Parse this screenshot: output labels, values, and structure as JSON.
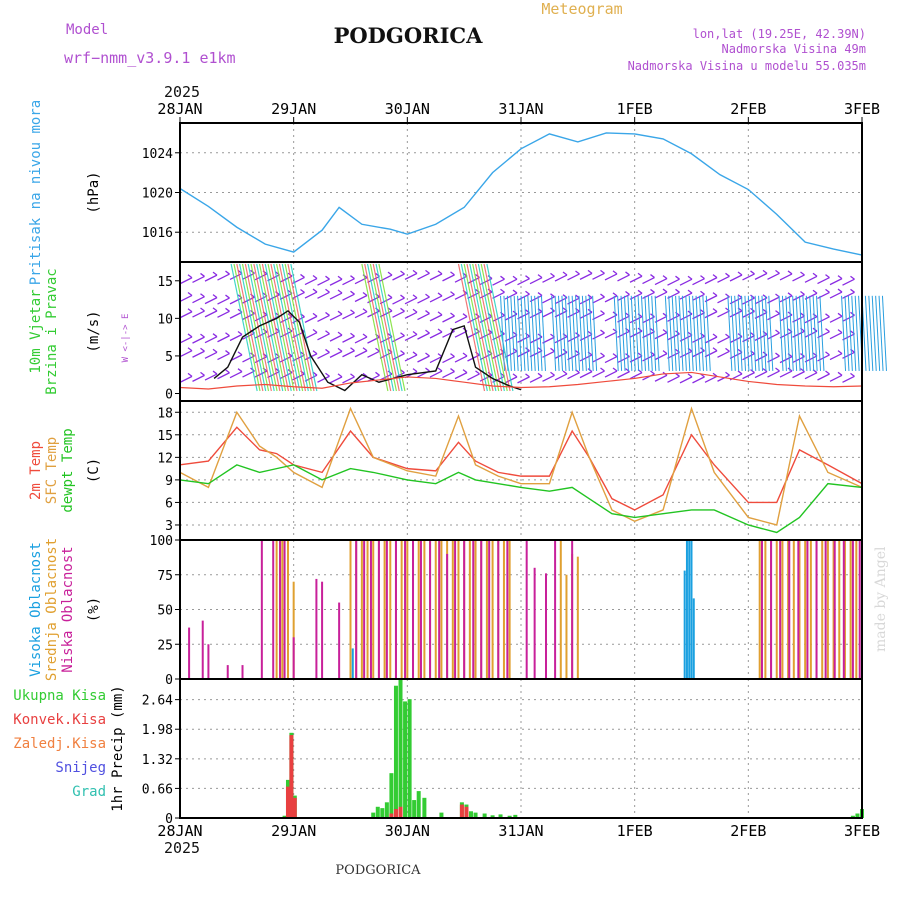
{
  "header": {
    "model_label": "Model",
    "model_name": "wrf−nmm_v3.9.1 e1km",
    "title": "PODGORICA",
    "subtitle": "Meteogram",
    "coords": "lon,lat (19.25E, 42.39N)",
    "altitude": "Nadmorska Visina 49m",
    "model_altitude": "Nadmorska Visina u modelu 55.035m",
    "year_top": "2025",
    "year_bottom": "2025",
    "footer_title": "PODGORICA",
    "watermark": "made by Angel"
  },
  "colors": {
    "pressure": "#3aa6e8",
    "temp2m": "#ef4b3c",
    "sfc": "#e0a040",
    "dewpt": "#22c422",
    "cloud_high": "#1aa0e0",
    "cloud_mid": "#e0a030",
    "cloud_low": "#c8209a",
    "precip_total": "#33cc33",
    "precip_conv": "#e84040",
    "precip_frz": "#f08040",
    "snow": "#5050e0",
    "hail": "#30c0b0",
    "wind_purple": "#8a2be2",
    "title_text": "#111111",
    "meta_text": "#b050d0"
  },
  "chart_data": {
    "type": "line",
    "x_ticks": [
      "28JAN",
      "29JAN",
      "30JAN",
      "31JAN",
      "1FEB",
      "2FEB",
      "3FEB"
    ],
    "panels": [
      {
        "id": "pressure",
        "type": "line",
        "label_lines": [
          "Pritisak na nivou mora"
        ],
        "unit": "(hPa)",
        "ylim": [
          1013,
          1027
        ],
        "yticks": [
          1016,
          1020,
          1024
        ],
        "grid": true,
        "series": [
          {
            "x": [
              0,
              0.25,
              0.5,
              0.75,
              1.0,
              1.25,
              1.4,
              1.6,
              1.85,
              2.0,
              2.25,
              2.5,
              2.75,
              3.0,
              3.25,
              3.5,
              3.75,
              4.0,
              4.25,
              4.5,
              4.75,
              5.0,
              5.25,
              5.5,
              5.75,
              6.0
            ],
            "y": [
              1020.4,
              1018.6,
              1016.5,
              1014.8,
              1014.0,
              1016.2,
              1018.5,
              1016.8,
              1016.3,
              1015.8,
              1016.8,
              1018.5,
              1022.0,
              1024.4,
              1025.9,
              1025.1,
              1026.0,
              1025.9,
              1025.4,
              1023.9,
              1021.8,
              1020.3,
              1017.8,
              1015.0,
              1014.3,
              1013.7
            ]
          }
        ]
      },
      {
        "id": "wind",
        "type": "line",
        "label_lines": [
          "10m Vjetar",
          "Brzina i Pravac"
        ],
        "unit": "(m/s)",
        "ylim": [
          -1,
          17.5
        ],
        "yticks": [
          0,
          5,
          10,
          15
        ],
        "grid": false,
        "direction_legend": "W <-|-> E",
        "series": [
          {
            "name": "wind speed",
            "x": [
              0.3,
              0.42,
              0.55,
              0.7,
              0.85,
              0.95,
              1.05,
              1.15,
              1.3,
              1.45,
              1.6,
              1.75,
              2.0,
              2.25,
              2.4,
              2.5,
              2.6,
              2.75,
              2.9,
              3.0
            ],
            "y": [
              2.0,
              3.5,
              7.5,
              9.0,
              10.0,
              11.0,
              9.5,
              5.0,
              1.5,
              0.4,
              2.5,
              1.5,
              2.5,
              3.0,
              8.5,
              9.0,
              3.5,
              2.0,
              1.0,
              0.5
            ]
          },
          {
            "name": "wind gust",
            "x": [
              0,
              0.25,
              0.5,
              0.75,
              1.0,
              1.25,
              1.5,
              1.75,
              2.0,
              2.25,
              2.5,
              2.75,
              3.0,
              3.25,
              3.5,
              3.75,
              4.0,
              4.25,
              4.5,
              4.75,
              5.0,
              5.25,
              5.5,
              5.75,
              6.0
            ],
            "y": [
              0.8,
              0.6,
              1.0,
              1.2,
              0.9,
              0.7,
              1.4,
              1.8,
              2.2,
              2.0,
              1.5,
              1.0,
              0.8,
              0.9,
              1.2,
              1.6,
              2.0,
              2.6,
              2.8,
              2.2,
              1.6,
              1.2,
              1.0,
              0.9,
              1.0
            ]
          }
        ]
      },
      {
        "id": "temperature",
        "type": "line",
        "label_lines": [
          "2m Temp",
          "SFC Temp",
          "dewpt Temp"
        ],
        "unit": "(C)",
        "ylim": [
          1,
          19.5
        ],
        "yticks": [
          3,
          6,
          9,
          12,
          15,
          18
        ],
        "grid": true,
        "series": [
          {
            "name": "2m Temp",
            "x": [
              0,
              0.25,
              0.5,
              0.7,
              0.85,
              1.0,
              1.25,
              1.5,
              1.7,
              2.0,
              2.25,
              2.45,
              2.6,
              2.8,
              3.0,
              3.25,
              3.45,
              3.6,
              3.8,
              4.0,
              4.25,
              4.5,
              4.7,
              5.0,
              5.25,
              5.45,
              5.7,
              6.0
            ],
            "y": [
              11.0,
              11.5,
              16.0,
              13.0,
              12.5,
              11.0,
              10.0,
              15.5,
              12.0,
              10.5,
              10.2,
              14.0,
              11.5,
              10.0,
              9.5,
              9.5,
              15.5,
              12.0,
              6.5,
              5.0,
              7.0,
              15.0,
              11.0,
              6.0,
              6.0,
              13.0,
              11.0,
              8.5
            ]
          },
          {
            "name": "SFC Temp",
            "x": [
              0,
              0.25,
              0.5,
              0.7,
              0.85,
              1.0,
              1.25,
              1.5,
              1.7,
              2.0,
              2.25,
              2.45,
              2.6,
              2.8,
              3.0,
              3.25,
              3.45,
              3.6,
              3.8,
              4.0,
              4.25,
              4.5,
              4.7,
              5.0,
              5.25,
              5.45,
              5.7,
              6.0
            ],
            "y": [
              10.0,
              8.0,
              18.0,
              13.5,
              12.0,
              10.0,
              8.0,
              18.5,
              12.0,
              10.2,
              9.5,
              17.5,
              11.0,
              9.5,
              8.5,
              8.5,
              18.0,
              12.0,
              5.0,
              3.5,
              5.0,
              18.5,
              10.0,
              4.0,
              3.0,
              17.5,
              10.0,
              8.0
            ]
          },
          {
            "name": "dewpt Temp",
            "x": [
              0,
              0.25,
              0.5,
              0.7,
              0.85,
              1.0,
              1.25,
              1.5,
              1.7,
              2.0,
              2.25,
              2.45,
              2.6,
              2.8,
              3.0,
              3.25,
              3.45,
              3.6,
              3.8,
              4.0,
              4.25,
              4.5,
              4.7,
              5.0,
              5.25,
              5.45,
              5.7,
              6.0
            ],
            "y": [
              9.0,
              8.5,
              11.0,
              10.0,
              10.5,
              11.0,
              9.0,
              10.5,
              10.0,
              9.0,
              8.5,
              10.0,
              9.0,
              8.5,
              8.0,
              7.5,
              8.0,
              6.5,
              4.5,
              4.0,
              4.5,
              5.0,
              5.0,
              3.0,
              2.0,
              4.0,
              8.5,
              8.0
            ]
          }
        ]
      },
      {
        "id": "clouds",
        "type": "bar",
        "label_lines": [
          "Visoka Oblacnost",
          "Srednja Oblacnost",
          "Niska Oblacnost"
        ],
        "unit": "(%)",
        "ylim": [
          0,
          100
        ],
        "yticks": [
          0,
          25,
          50,
          75,
          100
        ],
        "grid": true,
        "series": [
          {
            "name": "Visoka Oblacnost",
            "x": [
              1.52,
              4.44,
              4.46,
              4.48,
              4.5,
              4.52
            ],
            "y": [
              22,
              78,
              100,
              100,
              100,
              58
            ]
          },
          {
            "name": "Srednja Oblacnost",
            "x": [
              0.85,
              0.9,
              0.95,
              1.0,
              1.5,
              1.55,
              1.6,
              1.65,
              1.7,
              1.75,
              1.8,
              1.85,
              1.9,
              1.95,
              2.0,
              2.05,
              2.1,
              2.15,
              2.2,
              2.25,
              2.3,
              2.35,
              2.4,
              2.45,
              2.5,
              2.55,
              2.6,
              2.65,
              2.7,
              2.75,
              2.8,
              2.85,
              2.9,
              3.35,
              3.4,
              3.45,
              3.5,
              5.1,
              5.15,
              5.2,
              5.25,
              5.3,
              5.35,
              5.4,
              5.45,
              5.5,
              5.55,
              5.6,
              5.65,
              5.7,
              5.75,
              5.8,
              5.85,
              5.9,
              5.95
            ],
            "y": [
              100,
              100,
              100,
              70,
              100,
              100,
              100,
              100,
              100,
              100,
              100,
              100,
              100,
              100,
              100,
              100,
              100,
              100,
              100,
              100,
              100,
              100,
              100,
              100,
              100,
              100,
              100,
              100,
              100,
              100,
              100,
              100,
              100,
              100,
              75,
              90,
              88,
              100,
              100,
              100,
              100,
              100,
              100,
              100,
              100,
              100,
              100,
              100,
              100,
              100,
              100,
              100,
              100,
              100,
              100
            ]
          },
          {
            "name": "Niska Oblacnost",
            "x": [
              0.08,
              0.2,
              0.25,
              0.42,
              0.55,
              0.72,
              0.82,
              0.88,
              0.92,
              1.0,
              1.2,
              1.25,
              1.4,
              1.55,
              1.62,
              1.68,
              1.75,
              1.82,
              1.9,
              1.98,
              2.05,
              2.12,
              2.2,
              2.28,
              2.35,
              2.42,
              2.5,
              2.58,
              2.65,
              2.72,
              2.8,
              2.88,
              3.05,
              3.12,
              3.22,
              3.3,
              3.45,
              5.12,
              5.2,
              5.28,
              5.36,
              5.44,
              5.52,
              5.6,
              5.68,
              5.76,
              5.84,
              5.92,
              5.98
            ],
            "y": [
              37,
              42,
              25,
              10,
              10,
              100,
              100,
              100,
              100,
              30,
              72,
              70,
              55,
              100,
              100,
              100,
              100,
              100,
              100,
              100,
              100,
              100,
              100,
              100,
              90,
              100,
              100,
              100,
              100,
              100,
              100,
              100,
              100,
              80,
              76,
              100,
              100,
              100,
              100,
              100,
              100,
              100,
              100,
              100,
              100,
              100,
              100,
              100,
              100
            ]
          }
        ]
      },
      {
        "id": "precip",
        "type": "bar",
        "label_lines": [
          "1hr Precip (mm)"
        ],
        "unit": "",
        "ylim": [
          0,
          3.1
        ],
        "yticks": [
          0,
          0.66,
          1.32,
          1.98,
          2.64
        ],
        "grid": true,
        "legend": [
          "Ukupna Kisa",
          "Konvek.Kisa",
          "Zaledj.Kisa",
          "Snijeg",
          "Grad"
        ],
        "series": [
          {
            "name": "Ukupna Kisa",
            "x": [
              0.92,
              0.95,
              0.98,
              1.01,
              1.7,
              1.74,
              1.78,
              1.82,
              1.86,
              1.9,
              1.94,
              1.98,
              2.02,
              2.06,
              2.1,
              2.15,
              2.3,
              2.48,
              2.52,
              2.56,
              2.6,
              2.68,
              2.75,
              2.82,
              2.9,
              2.95,
              5.92,
              5.96,
              6.0
            ],
            "y": [
              0.05,
              0.85,
              1.9,
              0.5,
              0.12,
              0.25,
              0.22,
              0.35,
              1.0,
              2.95,
              3.1,
              2.6,
              2.65,
              0.4,
              0.6,
              0.45,
              0.12,
              0.35,
              0.3,
              0.15,
              0.12,
              0.1,
              0.06,
              0.08,
              0.05,
              0.07,
              0.05,
              0.1,
              0.2
            ]
          },
          {
            "name": "Konvek.Kisa",
            "x": [
              0.95,
              0.98,
              1.01,
              1.86,
              1.9,
              1.94,
              2.48,
              2.52
            ],
            "y": [
              0.7,
              1.85,
              0.45,
              0.1,
              0.2,
              0.25,
              0.3,
              0.25
            ]
          }
        ]
      }
    ]
  }
}
